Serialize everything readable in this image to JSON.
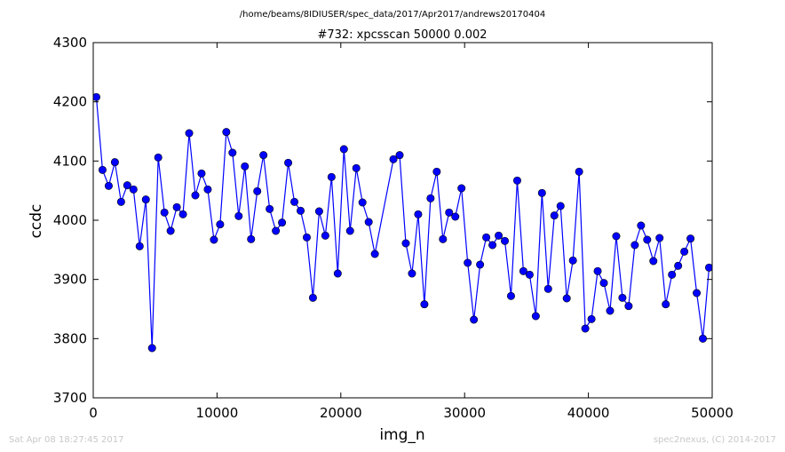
{
  "figure": {
    "path": "/home/beams/8IDIUSER/spec_data/2017/Apr2017/andrews20170404",
    "footer_left": "Sat Apr 08 18:27:45 2017",
    "footer_right": "spec2nexus, (C) 2014-2017"
  },
  "chart_data": {
    "type": "line",
    "title": "#732: xpcsscan 50000 0.002",
    "xlabel": "img_n",
    "ylabel": "ccdc",
    "xlim": [
      0,
      50000
    ],
    "ylim": [
      3700,
      4300
    ],
    "xticks": [
      "0",
      "10000",
      "20000",
      "30000",
      "40000",
      "50000"
    ],
    "yticks": [
      "3700",
      "3800",
      "3900",
      "4000",
      "4100",
      "4200",
      "4300"
    ],
    "grid": false,
    "legend": "none",
    "color": "#0000ff",
    "marker": "circle",
    "series": [
      {
        "x": [
          250,
          750,
          1250,
          1750,
          2250,
          2750,
          3250,
          3750,
          4250,
          4750,
          5250,
          5750,
          6250,
          6750,
          7250,
          7750,
          8250,
          8750,
          9250,
          9750,
          10250,
          10750,
          11250,
          11750,
          12250,
          12750,
          13250,
          13750,
          14250,
          14750,
          15250,
          15750,
          16250,
          16750,
          17250,
          17750,
          18250,
          18750,
          19250,
          19750,
          20250,
          20750,
          21250,
          21750,
          22250,
          22750,
          24250,
          24750,
          25250,
          25750,
          26250,
          26750,
          27250,
          27750,
          28250,
          28750,
          29250,
          29750,
          30250,
          30750,
          31250,
          31750,
          32250,
          32750,
          33250,
          33750,
          34250,
          34750,
          35250,
          35750,
          36250,
          36750,
          37250,
          37750,
          38250,
          38750,
          39250,
          39750,
          40250,
          40750,
          41250,
          41750,
          42250,
          42750,
          43250,
          43750,
          44250,
          44750,
          45250,
          45750,
          46250,
          46750,
          47250,
          47750,
          48250,
          48750,
          49250,
          49750
        ],
        "values": [
          4208,
          4085,
          4058,
          4098,
          4031,
          4059,
          4052,
          3956,
          4035,
          3784,
          4106,
          4013,
          3982,
          4022,
          4010,
          4147,
          4042,
          4079,
          4052,
          3967,
          3993,
          4149,
          4114,
          4007,
          4091,
          3968,
          4049,
          4110,
          4019,
          3982,
          3996,
          4097,
          4031,
          4016,
          3971,
          3869,
          4015,
          3974,
          4073,
          3910,
          4120,
          3982,
          4088,
          4030,
          3997,
          3943,
          4103,
          4110,
          3961,
          3910,
          4010,
          3858,
          4037,
          4082,
          3968,
          4013,
          4006,
          4054,
          3928,
          3832,
          3925,
          3971,
          3958,
          3974,
          3965,
          3872,
          4067,
          3914,
          3908,
          3838,
          4046,
          3884,
          4008,
          4024,
          3868,
          3932,
          4082,
          3817,
          3833,
          3914,
          3894,
          3847,
          3973,
          3869,
          3855,
          3958,
          3991,
          3967,
          3931,
          3970,
          3858,
          3908,
          3923,
          3947,
          3969,
          3877,
          3800,
          3920
        ]
      }
    ]
  }
}
